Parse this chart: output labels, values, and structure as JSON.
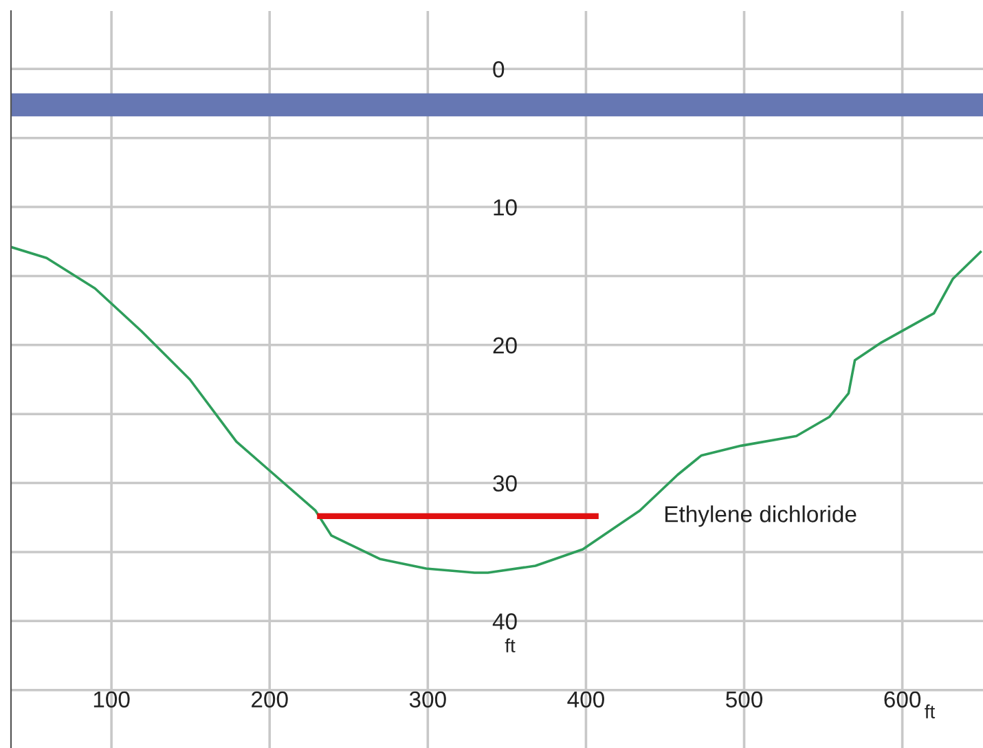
{
  "chart_data": {
    "type": "line",
    "xlabel": "ft",
    "ylabel": "ft",
    "xlim": [
      36.5,
      651
    ],
    "ylim": [
      49.2,
      -4.2
    ],
    "xticks": [
      100,
      200,
      300,
      400,
      500,
      600
    ],
    "yticks": [
      0,
      {
        "value": 5,
        "label": null
      },
      10,
      {
        "value": 15,
        "label": null
      },
      20,
      {
        "value": 25,
        "label": null
      },
      30,
      {
        "value": 35,
        "label": null
      },
      40,
      {
        "value": 45,
        "label": null
      }
    ],
    "grid": true,
    "legend": false,
    "marker": "none",
    "line_style": "solid",
    "ref_lines": [
      {
        "axis": "y",
        "value": 2.6,
        "color": "#6677b3"
      }
    ],
    "series": [
      {
        "color": "#2e9e5b",
        "x": [
          36.5,
          59,
          89.6,
          119,
          149.6,
          179,
          199,
          229,
          239,
          269.6,
          299,
          329.6,
          338,
          368,
          398,
          434,
          458,
          473,
          498,
          533,
          554,
          566,
          570,
          587,
          620,
          632,
          650
        ],
        "values": [
          12.9,
          13.7,
          15.9,
          19.0,
          22.5,
          27.0,
          29.0,
          32.0,
          33.8,
          35.5,
          36.2,
          36.5,
          36.5,
          36.0,
          34.8,
          32.0,
          29.4,
          28.0,
          27.3,
          26.6,
          25.2,
          23.5,
          21.1,
          19.8,
          17.7,
          15.2,
          13.2
        ]
      },
      {
        "name": "Ethylene dichloride",
        "color": "#e01010",
        "x": [
          230,
          408
        ],
        "values": [
          32.4,
          32.4
        ]
      }
    ]
  }
}
